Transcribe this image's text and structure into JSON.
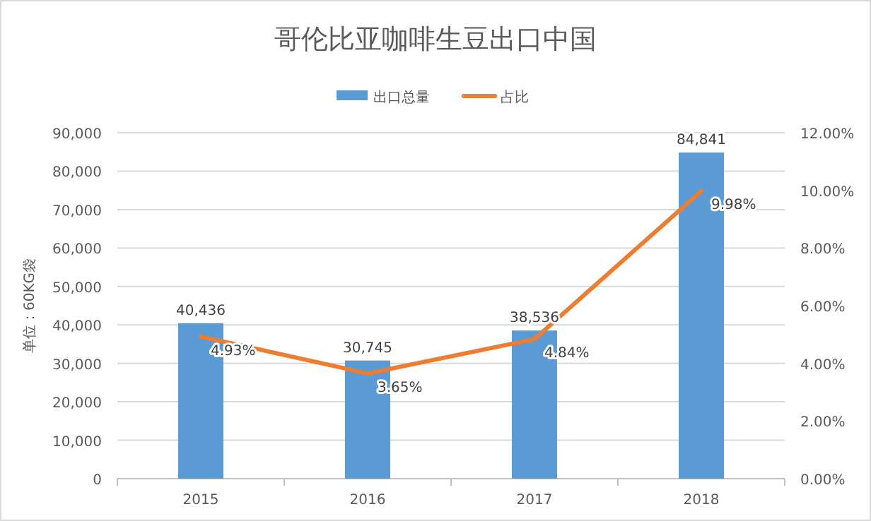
{
  "chart_data": {
    "type": "bar",
    "title": "哥伦比亚咖啡生豆出口中国",
    "ylabel": "单位：60KG袋",
    "categories": [
      "2015",
      "2016",
      "2017",
      "2018"
    ],
    "series": [
      {
        "name": "出口总量",
        "color": "#5b9bd5",
        "values": [
          40436,
          30745,
          38536,
          84841
        ],
        "value_labels": [
          "40,436",
          "30,745",
          "38,536",
          "84,841"
        ]
      },
      {
        "name": "占比",
        "type": "line",
        "axis": "y2",
        "color": "#ed7d31",
        "values": [
          4.93,
          3.65,
          4.84,
          9.98
        ],
        "value_labels": [
          "4.93%",
          "3.65%",
          "4.84%",
          "9.98%"
        ]
      }
    ],
    "ylim": [
      0,
      90000
    ],
    "yticks": [
      {
        "value": 0,
        "label": "0"
      },
      {
        "value": 10000,
        "label": "10,000"
      },
      {
        "value": 20000,
        "label": "20,000"
      },
      {
        "value": 30000,
        "label": "30,000"
      },
      {
        "value": 40000,
        "label": "40,000"
      },
      {
        "value": 50000,
        "label": "50,000"
      },
      {
        "value": 60000,
        "label": "60,000"
      },
      {
        "value": 70000,
        "label": "70,000"
      },
      {
        "value": 80000,
        "label": "80,000"
      },
      {
        "value": 90000,
        "label": "90,000"
      }
    ],
    "y2lim": [
      0,
      12
    ],
    "y2ticks": [
      {
        "value": 0,
        "label": "0.00%"
      },
      {
        "value": 2,
        "label": "2.00%"
      },
      {
        "value": 4,
        "label": "4.00%"
      },
      {
        "value": 6,
        "label": "6.00%"
      },
      {
        "value": 8,
        "label": "8.00%"
      },
      {
        "value": 10,
        "label": "10.00%"
      },
      {
        "value": 12,
        "label": "12.00%"
      }
    ],
    "grid": "y",
    "legend": "top",
    "marker": "none",
    "line_style": "solid"
  }
}
